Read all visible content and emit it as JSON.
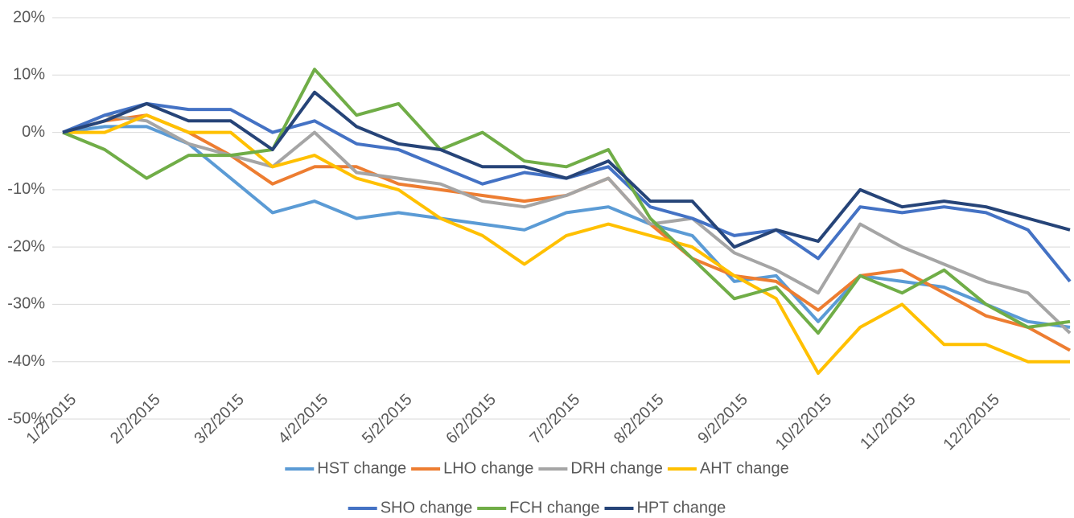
{
  "chart_data": {
    "type": "line",
    "categories": [
      "1/2/2015",
      null,
      "2/2/2015",
      null,
      "3/2/2015",
      null,
      "4/2/2015",
      null,
      "5/2/2015",
      null,
      "6/2/2015",
      null,
      "7/2/2015",
      null,
      "8/2/2015",
      null,
      "9/2/2015",
      null,
      "10/2/2015",
      null,
      "11/2/2015",
      null,
      "12/2/2015",
      null,
      null
    ],
    "series": [
      {
        "name": "HST change",
        "color": "#5b9bd5",
        "values": [
          0,
          1,
          1,
          -2,
          -8,
          -14,
          -12,
          -15,
          -14,
          -15,
          -16,
          -17,
          -14,
          -13,
          -16,
          -18,
          -26,
          -25,
          -33,
          -25,
          -26,
          -27,
          -30,
          -33,
          -34
        ]
      },
      {
        "name": "LHO change",
        "color": "#ed7d31",
        "values": [
          0,
          2,
          3,
          0,
          -4,
          -9,
          -6,
          -6,
          -9,
          -10,
          -11,
          -12,
          -11,
          -8,
          -16,
          -22,
          -25,
          -26,
          -31,
          -25,
          -24,
          -28,
          -32,
          -34,
          -38
        ]
      },
      {
        "name": "DRH change",
        "color": "#a5a5a5",
        "values": [
          0,
          3,
          2,
          -2,
          -4,
          -6,
          0,
          -7,
          -8,
          -9,
          -12,
          -13,
          -11,
          -8,
          -16,
          -15,
          -21,
          -24,
          -28,
          -16,
          -20,
          -23,
          -26,
          -28,
          -35
        ]
      },
      {
        "name": "AHT change",
        "color": "#ffc000",
        "values": [
          0,
          0,
          3,
          0,
          0,
          -6,
          -4,
          -8,
          -10,
          -15,
          -18,
          -23,
          -18,
          -16,
          -18,
          -20,
          -25,
          -29,
          -42,
          -34,
          -30,
          -37,
          -37,
          -40,
          -40
        ]
      },
      {
        "name": "SHO change",
        "color": "#4472c4",
        "values": [
          0,
          3,
          5,
          4,
          4,
          0,
          2,
          -2,
          -3,
          -6,
          -9,
          -7,
          -8,
          -6,
          -13,
          -15,
          -18,
          -17,
          -22,
          -13,
          -14,
          -13,
          -14,
          -17,
          -26
        ]
      },
      {
        "name": "FCH change",
        "color": "#70ad47",
        "values": [
          0,
          -3,
          -8,
          -4,
          -4,
          -3,
          11,
          3,
          5,
          -3,
          0,
          -5,
          -6,
          -3,
          -15,
          -22,
          -29,
          -27,
          -35,
          -25,
          -28,
          -24,
          -30,
          -34,
          -33
        ]
      },
      {
        "name": "HPT change",
        "color": "#264478",
        "values": [
          0,
          2,
          5,
          2,
          2,
          -3,
          7,
          1,
          -2,
          -3,
          -6,
          -6,
          -8,
          -5,
          -12,
          -12,
          -20,
          -17,
          -19,
          -10,
          -13,
          -12,
          -13,
          -15,
          -17
        ]
      }
    ],
    "ylim": [
      -50,
      20
    ],
    "yticks": [
      {
        "value": -50,
        "label": "-50%"
      },
      {
        "value": -40,
        "label": "-40%"
      },
      {
        "value": -30,
        "label": "-30%"
      },
      {
        "value": -20,
        "label": "-20%"
      },
      {
        "value": -10,
        "label": "-10%"
      },
      {
        "value": 0,
        "label": "0%"
      },
      {
        "value": 10,
        "label": "10%"
      },
      {
        "value": 20,
        "label": "20%"
      }
    ],
    "grid": true,
    "legend": "bottom"
  }
}
